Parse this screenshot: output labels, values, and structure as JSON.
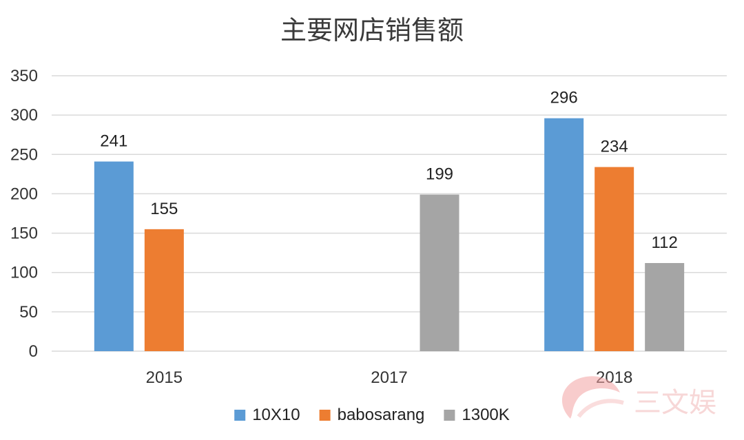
{
  "chart_data": {
    "type": "bar",
    "title": "主要网店销售额",
    "categories": [
      "2015",
      "2017",
      "2018"
    ],
    "series": [
      {
        "name": "10X10",
        "color": "#5b9bd5",
        "values": [
          241,
          null,
          296
        ]
      },
      {
        "name": "babosarang",
        "color": "#ed7d31",
        "values": [
          155,
          null,
          234
        ]
      },
      {
        "name": "1300K",
        "color": "#a5a5a5",
        "values": [
          null,
          199,
          112
        ]
      }
    ],
    "ylim": [
      0,
      350
    ],
    "yticks": [
      0,
      50,
      100,
      150,
      200,
      250,
      300,
      350
    ],
    "grid": true,
    "legend": "bottom"
  },
  "watermark": {
    "text": "三文娱"
  }
}
